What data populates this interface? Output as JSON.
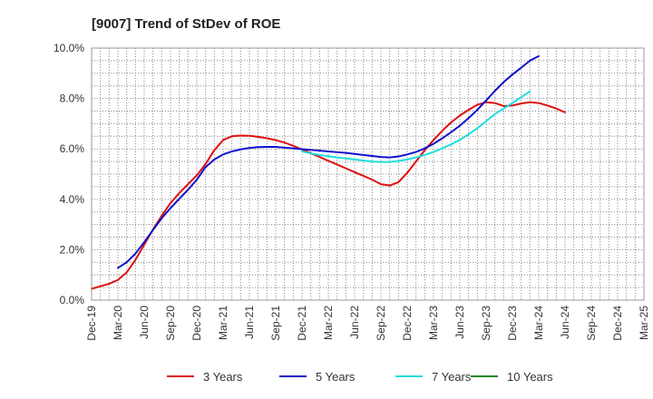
{
  "chart_data": {
    "type": "line",
    "title": "[9007]  Trend of StDev of ROE",
    "xlabel": "",
    "ylabel": "",
    "ylim": [
      0,
      10
    ],
    "y_ticks": [
      "0.0%",
      "2.0%",
      "4.0%",
      "6.0%",
      "8.0%",
      "10.0%"
    ],
    "x_ticks": [
      "Dec-19",
      "Mar-20",
      "Jun-20",
      "Sep-20",
      "Dec-20",
      "Mar-21",
      "Jun-21",
      "Sep-21",
      "Dec-21",
      "Mar-22",
      "Jun-22",
      "Sep-22",
      "Dec-22",
      "Mar-23",
      "Jun-23",
      "Sep-23",
      "Dec-23",
      "Mar-24",
      "Jun-24",
      "Sep-24",
      "Dec-24",
      "Mar-25"
    ],
    "grid": true,
    "legend_position": "bottom",
    "series": [
      {
        "name": "3 Years",
        "color": "#dd1111",
        "x": [
          0,
          1,
          2,
          3,
          4,
          5,
          6,
          7,
          8,
          9,
          10,
          11,
          12,
          13,
          14,
          15,
          16,
          17,
          18,
          19,
          20,
          21,
          22,
          23,
          24,
          25,
          26,
          27,
          28,
          29,
          30,
          31,
          32,
          33,
          34,
          35,
          36,
          37,
          38,
          39,
          40,
          41,
          42,
          43,
          44,
          45,
          46,
          47,
          48,
          49,
          50,
          51,
          52,
          53,
          54,
          55,
          56,
          57,
          58,
          59,
          60
        ],
        "values": [
          0.45,
          0.55,
          0.65,
          0.8,
          1.1,
          1.6,
          2.2,
          2.8,
          3.35,
          3.85,
          4.25,
          4.6,
          4.95,
          5.4,
          5.95,
          6.35,
          6.5,
          6.53,
          6.52,
          6.48,
          6.42,
          6.35,
          6.25,
          6.12,
          5.98,
          5.83,
          5.68,
          5.53,
          5.38,
          5.23,
          5.08,
          4.93,
          4.78,
          4.6,
          4.55,
          4.68,
          5.05,
          5.5,
          5.95,
          6.35,
          6.72,
          7.05,
          7.32,
          7.55,
          7.75,
          7.85,
          7.82,
          7.7,
          7.72,
          7.8,
          7.85,
          7.82,
          7.72,
          7.6,
          7.45,
          null,
          null,
          null,
          null,
          null,
          null
        ]
      },
      {
        "name": "5 Years",
        "color": "#1111cc",
        "x": [
          0,
          1,
          2,
          3,
          4,
          5,
          6,
          7,
          8,
          9,
          10,
          11,
          12,
          13,
          14,
          15,
          16,
          17,
          18,
          19,
          20,
          21,
          22,
          23,
          24,
          25,
          26,
          27,
          28,
          29,
          30,
          31,
          32,
          33,
          34,
          35,
          36,
          37,
          38,
          39,
          40,
          41,
          42,
          43,
          44,
          45,
          46,
          47,
          48,
          49,
          50,
          51,
          52,
          53,
          54,
          55,
          56,
          57,
          58,
          59,
          60
        ],
        "values": [
          null,
          null,
          null,
          1.28,
          1.5,
          1.85,
          2.3,
          2.78,
          3.25,
          3.65,
          4.02,
          4.38,
          4.78,
          5.28,
          5.58,
          5.78,
          5.9,
          5.98,
          6.04,
          6.07,
          6.08,
          6.08,
          6.05,
          6.02,
          5.99,
          5.96,
          5.93,
          5.9,
          5.87,
          5.84,
          5.8,
          5.76,
          5.72,
          5.68,
          5.66,
          5.7,
          5.78,
          5.88,
          6.02,
          6.2,
          6.42,
          6.66,
          6.92,
          7.22,
          7.55,
          7.92,
          8.3,
          8.65,
          8.95,
          9.22,
          9.5,
          9.68,
          null,
          null,
          null,
          null,
          null,
          null,
          null,
          null,
          null
        ]
      },
      {
        "name": "7 Years",
        "color": "#22dddd",
        "x": [
          0,
          1,
          2,
          3,
          4,
          5,
          6,
          7,
          8,
          9,
          10,
          11,
          12,
          13,
          14,
          15,
          16,
          17,
          18,
          19,
          20,
          21,
          22,
          23,
          24,
          25,
          26,
          27,
          28,
          29,
          30,
          31,
          32,
          33,
          34,
          35,
          36,
          37,
          38,
          39,
          40,
          41,
          42,
          43,
          44,
          45,
          46,
          47,
          48,
          49,
          50,
          51,
          52,
          53,
          54,
          55,
          56,
          57,
          58,
          59,
          60
        ],
        "values": [
          null,
          null,
          null,
          null,
          null,
          null,
          null,
          null,
          null,
          null,
          null,
          null,
          null,
          null,
          null,
          null,
          null,
          null,
          null,
          null,
          null,
          null,
          null,
          null,
          5.9,
          5.82,
          5.76,
          5.71,
          5.66,
          5.62,
          5.58,
          5.54,
          5.5,
          5.48,
          5.48,
          5.52,
          5.58,
          5.66,
          5.76,
          5.88,
          6.02,
          6.18,
          6.36,
          6.58,
          6.82,
          7.1,
          7.38,
          7.6,
          7.82,
          8.05,
          8.28,
          null,
          null,
          null,
          null,
          null,
          null,
          null,
          null,
          null,
          null
        ]
      },
      {
        "name": "10 Years",
        "color": "#228822",
        "x": [],
        "values": []
      }
    ]
  }
}
